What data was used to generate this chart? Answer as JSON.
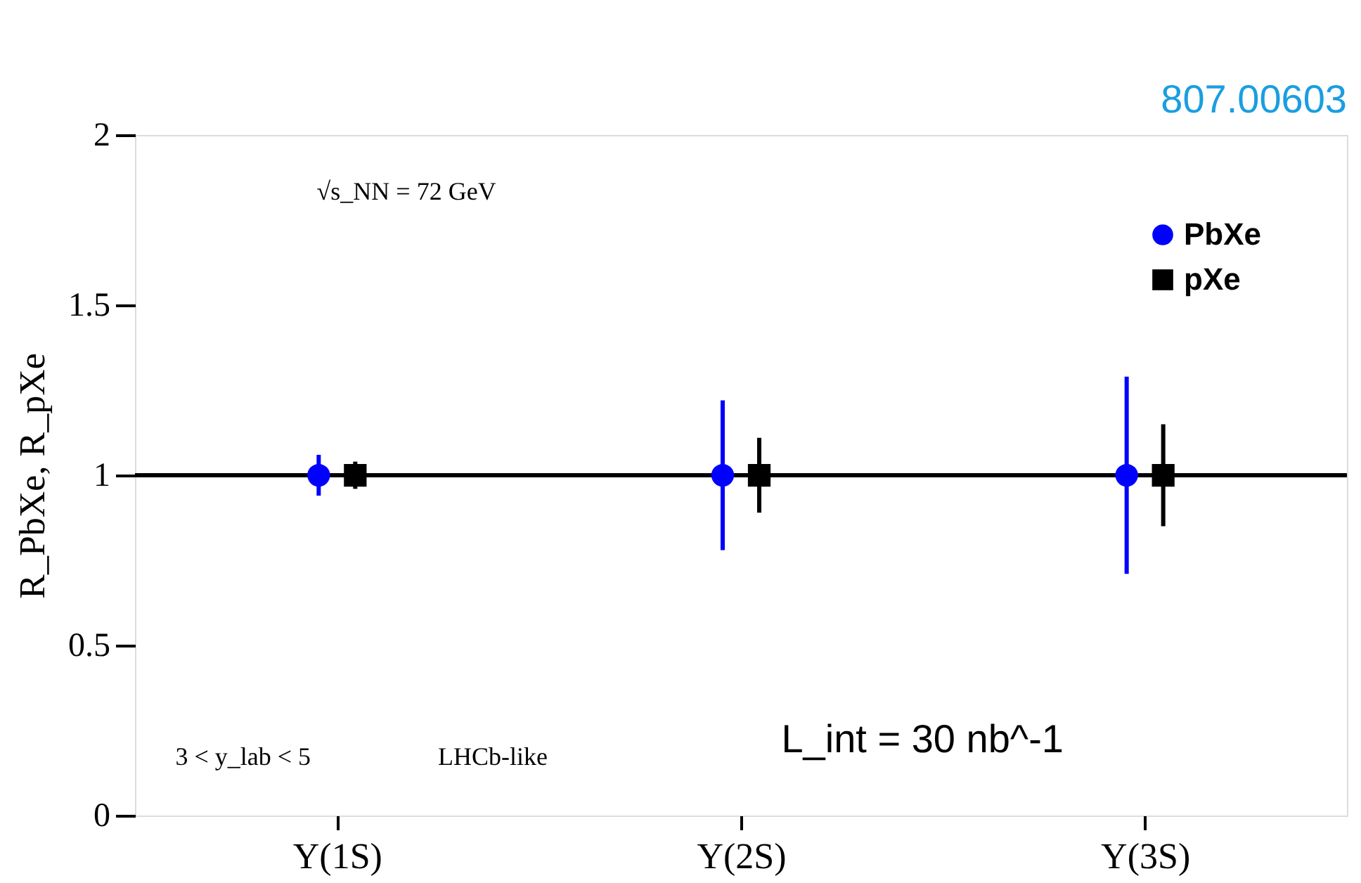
{
  "chart_data": {
    "type": "scatter",
    "ylabel": "R_PbXe, R_pXe",
    "categories": [
      "Υ(1S)",
      "Υ(2S)",
      "Υ(3S)"
    ],
    "series": [
      {
        "name": "PbXe",
        "color": "#0000ff",
        "marker": "circle",
        "values": [
          1,
          1,
          1
        ],
        "errors": [
          0.06,
          0.22,
          0.29
        ]
      },
      {
        "name": "pXe",
        "color": "#000000",
        "marker": "square",
        "values": [
          1,
          1,
          1
        ],
        "errors": [
          0.04,
          0.11,
          0.15
        ]
      }
    ],
    "ylim": [
      0,
      2
    ],
    "yticks": [
      0,
      0.5,
      1,
      1.5,
      2
    ],
    "ref_lines": [
      {
        "axis": "y",
        "value": 1,
        "color": "#000000"
      }
    ],
    "annotations": [
      "√s_NN = 72 GeV",
      "3 < y_lab < 5",
      "LHCb-like",
      "L_int = 30 nb^-1",
      "807.00603"
    ],
    "grid": false,
    "legend": "top right"
  }
}
